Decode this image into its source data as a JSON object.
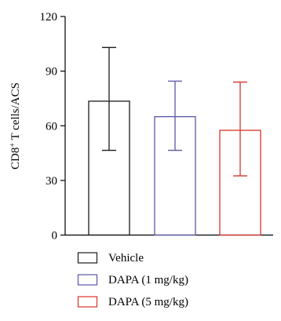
{
  "chart_data": {
    "type": "bar",
    "categories": [
      "Vehicle",
      "DAPA (1 mg/kg)",
      "DAPA (5 mg/kg)"
    ],
    "values": [
      73.5,
      65,
      57.5
    ],
    "error_upper": [
      103,
      84.5,
      84
    ],
    "error_lower": [
      46.5,
      46.5,
      32.5
    ],
    "colors": [
      "#1a1a1a",
      "#5b57a8",
      "#d9322b"
    ],
    "ylabel_main": "CD8",
    "ylabel_sup": "+",
    "ylabel_rest": " T cells/ACS",
    "ylim": [
      0,
      120
    ],
    "yticks": [
      "0",
      "30",
      "60",
      "90",
      "120"
    ],
    "ytick_values": [
      0,
      30,
      60,
      90,
      120
    ],
    "grid": false,
    "legend_position": "bottom"
  }
}
